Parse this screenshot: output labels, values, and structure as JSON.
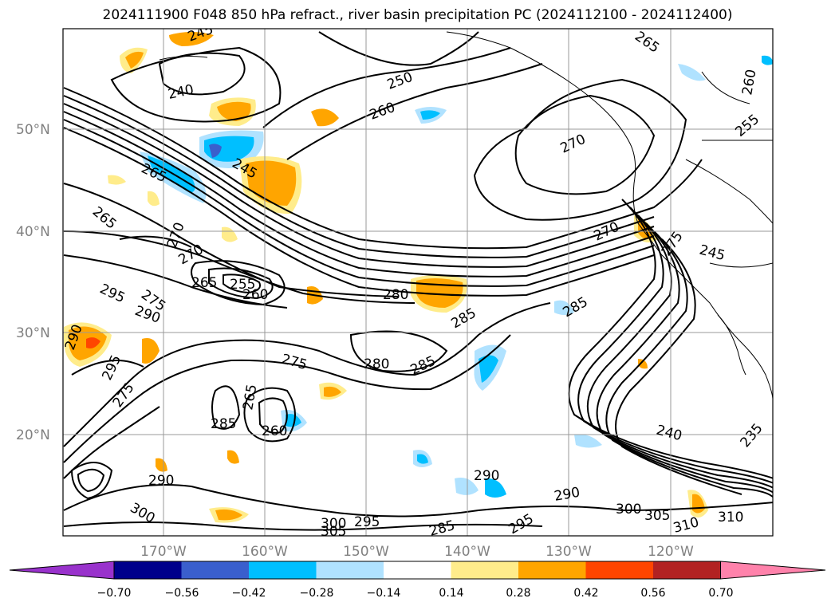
{
  "title": "2024111900 F048 850 hPa refract., river basin precipitation PC (2024112100 - 2024112400)",
  "lat_labels": [
    "50°N",
    "40°N",
    "30°N",
    "20°N"
  ],
  "lon_labels": [
    "170°W",
    "160°W",
    "150°W",
    "140°W",
    "130°W",
    "120°W"
  ],
  "contour_labels": [
    "245",
    "240",
    "250",
    "260",
    "265",
    "265",
    "260",
    "255",
    "245",
    "265",
    "270",
    "270",
    "270",
    "275",
    "245",
    "270",
    "265",
    "255",
    "260",
    "295",
    "275",
    "290",
    "280",
    "285",
    "285",
    "290",
    "295",
    "275",
    "280",
    "275",
    "285",
    "265",
    "260",
    "240",
    "235",
    "285",
    "290",
    "290",
    "290",
    "300",
    "305",
    "310",
    "310",
    "300",
    "300",
    "305",
    "295",
    "285",
    "295"
  ],
  "colorbar": {
    "ticks": [
      "−0.70",
      "−0.56",
      "−0.42",
      "−0.28",
      "−0.14",
      "0.14",
      "0.28",
      "0.42",
      "0.56",
      "0.70"
    ],
    "colors": [
      "#9932cc",
      "#00008b",
      "#3a5fcd",
      "#00bfff",
      "#b0e2ff",
      "#ffffff",
      "#ffec8b",
      "#ffa500",
      "#ff4500",
      "#b22222",
      "#ff82ab"
    ]
  }
}
